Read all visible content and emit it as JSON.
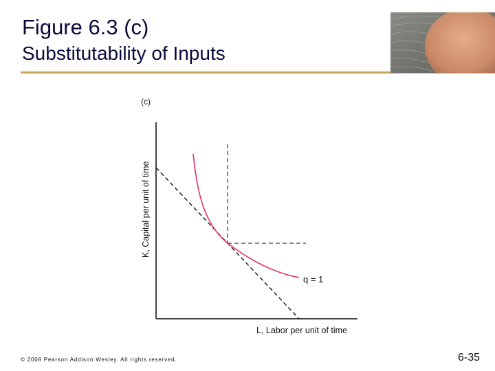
{
  "slide": {
    "title": "Figure 6.3 (c)",
    "subtitle": "Substitutability of Inputs",
    "copyright": "© 2008 Pearson Addison Wesley. All rights reserved.",
    "page_number": "6-35"
  },
  "figure": {
    "panel_label": "(c)",
    "y_axis_label": "K, Capital per unit of time",
    "x_axis_label": "L, Labor per unit of time",
    "isoquant_label": "q = 1"
  },
  "colors": {
    "title": "#0a0a3a",
    "rule": "#c8a35a",
    "isoquant": "#e0306e",
    "axes": "#444444",
    "dashed": "#111111"
  }
}
